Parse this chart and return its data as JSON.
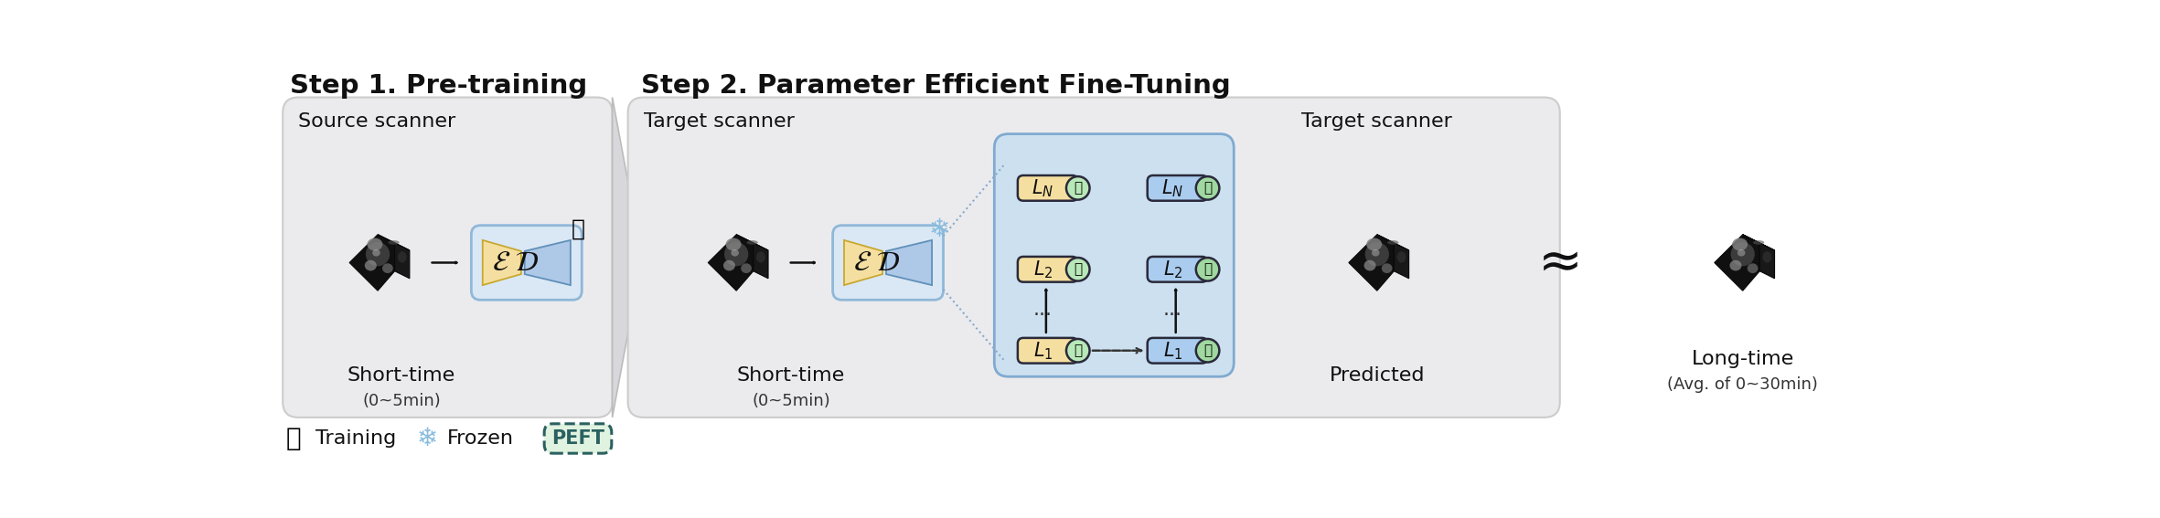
{
  "title1": "Step 1. Pre-training",
  "title2": "Step 2. Parameter Efficient Fine-Tuning",
  "step1_label_top": "Source scanner",
  "step1_label_bot1": "Short-time",
  "step1_label_bot2": "(0~5min)",
  "step2_label_top": "Target scanner",
  "step2_label_bot1": "Short-time",
  "step2_label_bot2": "(0~5min)",
  "step2_right_top": "Target scanner",
  "step2_right_pred": "Predicted",
  "step2_right_bot1": "Long-time",
  "step2_right_bot2": "(Avg. of 0~30min)",
  "approx_symbol": "≈",
  "legend_training": "Training",
  "legend_frozen": "Frozen",
  "legend_peft": "PEFT",
  "box1_fc": "#ebebee",
  "box2_fc": "#ebebee",
  "box_ec": "#cccccc",
  "chevron_fc": "#d8d8dc",
  "chevron_ec": "#bbbbbb",
  "encoder_fc": "#f5dfa0",
  "encoder_ec": "#c8a830",
  "decoder_fc": "#aec8e8",
  "decoder_ec": "#6090b8",
  "ed_box_fc": "#dae8f5",
  "ed_box_ec": "#90b8d8",
  "layer_fc": "#f5dfa0",
  "layer_ec": "#2a2a3a",
  "layer_cap_fc": "#b8e8b8",
  "layer_cap_ec": "#2a2a3a",
  "layer_box_fc": "#cce0f0",
  "layer_box_ec": "#80aad0",
  "layer2_fc": "#aaccee",
  "layer2_cap_fc": "#a0d8a0",
  "arrow_color": "#1a1a1a",
  "dotted_color": "#88aacc",
  "dashed_arrow_color": "#444444",
  "peft_box_fc": "#e0f2e0",
  "peft_box_ec": "#2a6060",
  "peft_text": "#2a6060",
  "main_bg": "#ffffff",
  "text_dark": "#111111",
  "text_mid": "#333333",
  "text_light": "#555555",
  "snowflake_color": "#88bbdd"
}
